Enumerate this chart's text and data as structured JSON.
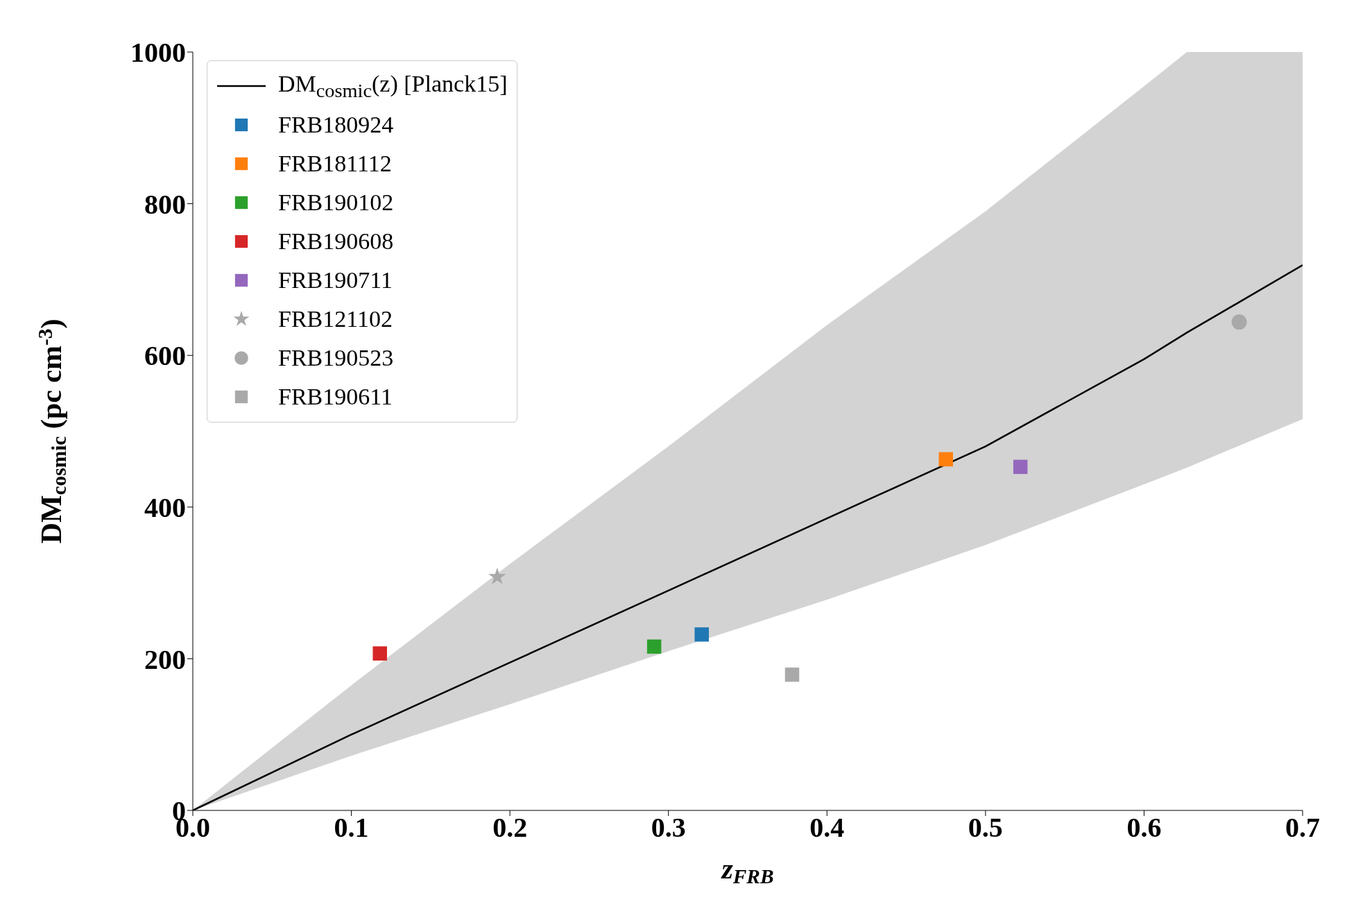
{
  "chart_data": {
    "type": "scatter",
    "xlabel": "z$_{FRB}$",
    "ylabel": "DM$_{cosmic}$ (pc cm$^{-3}$)",
    "xlim": [
      0,
      0.7
    ],
    "ylim": [
      0,
      1000
    ],
    "xticks": [
      {
        "value": 0,
        "label": "0.0"
      },
      0.1,
      0.2,
      0.3,
      0.4,
      0.5,
      0.6,
      0.7
    ],
    "yticks": [
      0,
      200,
      400,
      600,
      800,
      1000
    ],
    "legend": "top left",
    "series": [
      {
        "type": "line",
        "name": "DM$_{cosmic}$(z)  [Planck15]",
        "color": "#000000",
        "marker": "none",
        "x": [
          0,
          0.1,
          0.2,
          0.3,
          0.4,
          0.5,
          0.6,
          0.627,
          0.7
        ],
        "values": [
          0,
          100,
          195,
          290,
          385,
          480,
          595,
          630,
          719
        ],
        "lower": [
          0,
          72,
          140,
          210,
          278,
          350,
          430,
          452,
          516
        ],
        "upper": [
          0,
          165,
          325,
          480,
          640,
          790,
          955,
          1000,
          1000
        ]
      },
      {
        "name": "FRB180924",
        "color": "#1f77b4",
        "marker": "square",
        "x": [
          0.321
        ],
        "values": [
          232
        ]
      },
      {
        "name": "FRB181112",
        "color": "#ff7f0e",
        "marker": "square",
        "x": [
          0.475
        ],
        "values": [
          463
        ]
      },
      {
        "name": "FRB190102",
        "color": "#2ca02c",
        "marker": "square",
        "x": [
          0.291
        ],
        "values": [
          216
        ]
      },
      {
        "name": "FRB190608",
        "color": "#d62728",
        "marker": "square",
        "x": [
          0.118
        ],
        "values": [
          207
        ]
      },
      {
        "name": "FRB190711",
        "color": "#9467bd",
        "marker": "square",
        "x": [
          0.522
        ],
        "values": [
          453
        ]
      },
      {
        "name": "FRB121102",
        "color": "#a9a9a9",
        "marker": "star",
        "x": [
          0.192
        ],
        "values": [
          308
        ]
      },
      {
        "name": "FRB190523",
        "color": "#a9a9a9",
        "marker": "circle",
        "x": [
          0.66
        ],
        "values": [
          644
        ]
      },
      {
        "name": "FRB190611",
        "color": "#a9a9a9",
        "marker": "square",
        "x": [
          0.378
        ],
        "values": [
          179
        ]
      }
    ]
  }
}
